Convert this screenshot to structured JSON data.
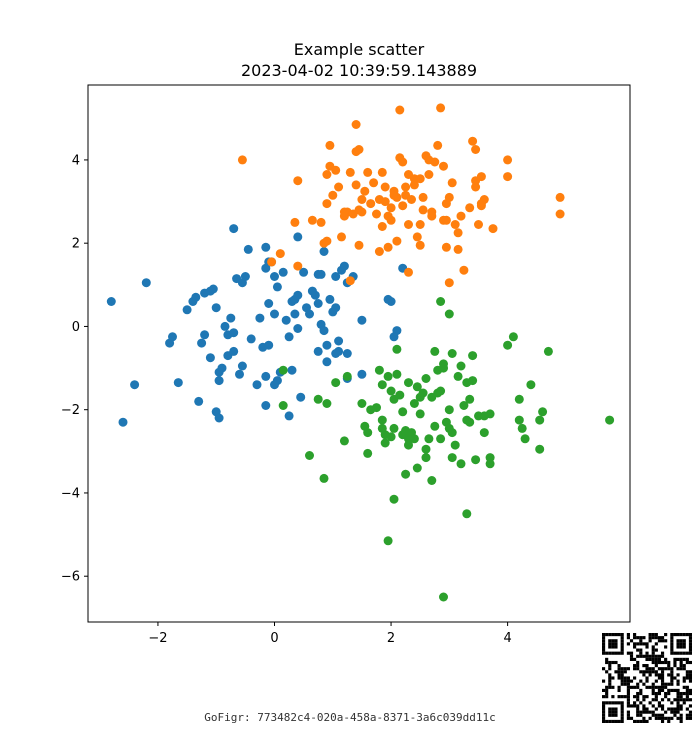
{
  "chart_data": {
    "type": "scatter",
    "title": "Example scatter",
    "subtitle": "2023-04-02 10:39:59.143889",
    "xlabel": "",
    "ylabel": "",
    "xlim": [
      -3.2,
      6.1
    ],
    "ylim": [
      -7.1,
      5.8
    ],
    "xticks": [
      -2,
      0,
      2,
      4
    ],
    "yticks": [
      -6,
      -4,
      -2,
      0,
      2,
      4
    ],
    "grid": false,
    "legend": "none",
    "series": [
      {
        "color": "#1f77b4",
        "points": [
          [
            -2.8,
            0.6
          ],
          [
            -2.2,
            1.05
          ],
          [
            -2.6,
            -2.3
          ],
          [
            -2.4,
            -1.4
          ],
          [
            -1.8,
            -0.4
          ],
          [
            -1.75,
            -0.25
          ],
          [
            -1.65,
            -1.35
          ],
          [
            -1.5,
            0.4
          ],
          [
            -1.4,
            0.6
          ],
          [
            -1.35,
            0.7
          ],
          [
            -1.3,
            -1.8
          ],
          [
            -1.2,
            -0.2
          ],
          [
            -1.25,
            -0.4
          ],
          [
            -1.2,
            0.8
          ],
          [
            -1.1,
            0.85
          ],
          [
            -1.05,
            0.9
          ],
          [
            -1.1,
            -0.75
          ],
          [
            -1.0,
            0.45
          ],
          [
            -0.95,
            -1.1
          ],
          [
            -0.95,
            -1.3
          ],
          [
            -0.9,
            -1.0
          ],
          [
            -0.85,
            0.0
          ],
          [
            -0.8,
            -0.2
          ],
          [
            -0.8,
            -0.7
          ],
          [
            -0.75,
            0.2
          ],
          [
            -0.7,
            -0.15
          ],
          [
            -0.7,
            -0.6
          ],
          [
            -0.65,
            1.15
          ],
          [
            -0.6,
            -1.15
          ],
          [
            -0.55,
            -0.95
          ],
          [
            -0.5,
            1.2
          ],
          [
            -0.55,
            1.05
          ],
          [
            -0.45,
            1.85
          ],
          [
            -0.7,
            2.35
          ],
          [
            -1.0,
            -2.05
          ],
          [
            -0.95,
            -2.2
          ],
          [
            -0.4,
            -0.3
          ],
          [
            -0.3,
            -1.4
          ],
          [
            -0.25,
            0.2
          ],
          [
            -0.2,
            -0.5
          ],
          [
            -0.15,
            1.9
          ],
          [
            -0.15,
            1.4
          ],
          [
            -0.1,
            0.55
          ],
          [
            -0.05,
            1.55
          ],
          [
            0.0,
            0.3
          ],
          [
            0.0,
            1.2
          ],
          [
            0.05,
            -1.3
          ],
          [
            0.0,
            -1.4
          ],
          [
            -0.1,
            -0.45
          ],
          [
            -0.15,
            -1.2
          ],
          [
            -0.1,
            1.55
          ],
          [
            0.05,
            0.95
          ],
          [
            0.1,
            -1.1
          ],
          [
            0.15,
            1.3
          ],
          [
            0.2,
            0.15
          ],
          [
            0.25,
            -0.25
          ],
          [
            0.3,
            -1.05
          ],
          [
            0.25,
            -2.15
          ],
          [
            -0.15,
            -1.9
          ],
          [
            0.3,
            0.6
          ],
          [
            0.35,
            0.3
          ],
          [
            0.35,
            0.65
          ],
          [
            0.4,
            0.75
          ],
          [
            0.4,
            -0.05
          ],
          [
            0.45,
            -1.7
          ],
          [
            0.4,
            2.15
          ],
          [
            0.5,
            1.3
          ],
          [
            0.55,
            0.45
          ],
          [
            0.6,
            0.3
          ],
          [
            0.65,
            0.85
          ],
          [
            0.7,
            0.75
          ],
          [
            0.75,
            1.25
          ],
          [
            0.75,
            0.55
          ],
          [
            0.8,
            1.25
          ],
          [
            0.75,
            -0.6
          ],
          [
            0.8,
            0.05
          ],
          [
            0.85,
            -0.1
          ],
          [
            0.9,
            -0.45
          ],
          [
            0.9,
            -0.85
          ],
          [
            0.95,
            0.65
          ],
          [
            1.0,
            0.35
          ],
          [
            1.05,
            0.45
          ],
          [
            1.05,
            1.2
          ],
          [
            1.1,
            -0.6
          ],
          [
            1.1,
            -0.35
          ],
          [
            1.15,
            1.35
          ],
          [
            1.2,
            1.45
          ],
          [
            1.25,
            -0.65
          ],
          [
            1.25,
            -1.25
          ],
          [
            1.25,
            1.05
          ],
          [
            1.35,
            1.2
          ],
          [
            1.5,
            0.15
          ],
          [
            0.85,
            1.8
          ],
          [
            1.5,
            -1.15
          ],
          [
            2.0,
            0.6
          ],
          [
            1.95,
            0.65
          ],
          [
            2.1,
            -0.1
          ],
          [
            2.05,
            -0.25
          ],
          [
            2.2,
            1.4
          ],
          [
            1.05,
            -0.65
          ]
        ]
      },
      {
        "color": "#ff7f0e",
        "points": [
          [
            -0.55,
            4.0
          ],
          [
            0.1,
            1.75
          ],
          [
            -0.05,
            1.55
          ],
          [
            0.35,
            2.5
          ],
          [
            0.4,
            3.5
          ],
          [
            0.4,
            1.45
          ],
          [
            0.65,
            2.55
          ],
          [
            0.8,
            2.5
          ],
          [
            0.85,
            2.0
          ],
          [
            0.9,
            2.95
          ],
          [
            0.9,
            3.65
          ],
          [
            0.95,
            4.35
          ],
          [
            0.95,
            3.85
          ],
          [
            1.0,
            3.15
          ],
          [
            1.05,
            3.75
          ],
          [
            1.1,
            3.35
          ],
          [
            1.15,
            2.15
          ],
          [
            1.2,
            2.65
          ],
          [
            1.25,
            2.75
          ],
          [
            1.3,
            1.1
          ],
          [
            1.35,
            2.7
          ],
          [
            1.4,
            3.4
          ],
          [
            1.4,
            4.85
          ],
          [
            1.4,
            4.2
          ],
          [
            1.45,
            4.25
          ],
          [
            1.45,
            2.8
          ],
          [
            1.45,
            1.95
          ],
          [
            1.5,
            2.75
          ],
          [
            1.5,
            3.05
          ],
          [
            1.55,
            3.25
          ],
          [
            1.6,
            3.7
          ],
          [
            1.65,
            2.95
          ],
          [
            1.7,
            3.45
          ],
          [
            1.75,
            2.7
          ],
          [
            1.8,
            3.05
          ],
          [
            1.8,
            1.8
          ],
          [
            1.85,
            3.7
          ],
          [
            1.85,
            2.4
          ],
          [
            1.9,
            3.0
          ],
          [
            1.9,
            3.35
          ],
          [
            1.95,
            1.9
          ],
          [
            1.95,
            2.65
          ],
          [
            2.0,
            2.55
          ],
          [
            2.0,
            2.85
          ],
          [
            2.05,
            3.25
          ],
          [
            2.05,
            3.15
          ],
          [
            2.1,
            2.05
          ],
          [
            2.1,
            3.1
          ],
          [
            2.15,
            5.2
          ],
          [
            2.15,
            4.05
          ],
          [
            2.2,
            3.95
          ],
          [
            2.2,
            2.9
          ],
          [
            2.25,
            3.35
          ],
          [
            2.25,
            3.15
          ],
          [
            2.3,
            2.45
          ],
          [
            2.3,
            3.65
          ],
          [
            2.35,
            3.05
          ],
          [
            2.4,
            3.4
          ],
          [
            2.4,
            3.55
          ],
          [
            2.45,
            2.15
          ],
          [
            2.5,
            1.95
          ],
          [
            2.5,
            3.55
          ],
          [
            2.5,
            2.45
          ],
          [
            2.55,
            3.1
          ],
          [
            2.55,
            2.8
          ],
          [
            2.6,
            4.1
          ],
          [
            2.65,
            3.65
          ],
          [
            2.65,
            4.0
          ],
          [
            2.7,
            2.75
          ],
          [
            2.7,
            2.65
          ],
          [
            2.75,
            3.95
          ],
          [
            2.8,
            4.35
          ],
          [
            2.85,
            5.25
          ],
          [
            2.9,
            3.85
          ],
          [
            2.9,
            2.55
          ],
          [
            2.95,
            2.55
          ],
          [
            2.95,
            1.9
          ],
          [
            2.95,
            2.95
          ],
          [
            3.0,
            3.1
          ],
          [
            3.0,
            1.05
          ],
          [
            3.05,
            3.45
          ],
          [
            3.1,
            2.45
          ],
          [
            3.15,
            2.25
          ],
          [
            3.15,
            1.85
          ],
          [
            3.2,
            2.65
          ],
          [
            3.25,
            1.35
          ],
          [
            3.35,
            2.85
          ],
          [
            3.4,
            4.45
          ],
          [
            3.45,
            3.35
          ],
          [
            3.45,
            3.5
          ],
          [
            3.45,
            4.25
          ],
          [
            3.5,
            2.45
          ],
          [
            3.55,
            3.6
          ],
          [
            3.55,
            2.9
          ],
          [
            3.6,
            3.05
          ],
          [
            3.75,
            2.35
          ],
          [
            4.0,
            4.0
          ],
          [
            4.0,
            3.6
          ],
          [
            4.9,
            3.1
          ],
          [
            4.9,
            2.7
          ],
          [
            3.55,
            2.95
          ],
          [
            1.2,
            2.75
          ],
          [
            0.9,
            2.05
          ],
          [
            2.3,
            1.3
          ],
          [
            1.3,
            3.7
          ]
        ]
      },
      {
        "color": "#2ca02c",
        "points": [
          [
            0.15,
            -1.05
          ],
          [
            0.15,
            -1.9
          ],
          [
            0.6,
            -3.1
          ],
          [
            0.75,
            -1.75
          ],
          [
            0.85,
            -3.65
          ],
          [
            0.9,
            -1.85
          ],
          [
            1.05,
            -1.35
          ],
          [
            1.2,
            -2.75
          ],
          [
            1.25,
            -1.2
          ],
          [
            1.5,
            -1.85
          ],
          [
            1.55,
            -2.4
          ],
          [
            1.6,
            -2.55
          ],
          [
            1.6,
            -3.05
          ],
          [
            1.65,
            -2.0
          ],
          [
            1.75,
            -1.95
          ],
          [
            1.8,
            -1.05
          ],
          [
            1.85,
            -2.25
          ],
          [
            1.85,
            -1.4
          ],
          [
            1.9,
            -2.8
          ],
          [
            1.9,
            -2.6
          ],
          [
            1.95,
            -5.15
          ],
          [
            1.95,
            -1.2
          ],
          [
            2.0,
            -2.65
          ],
          [
            2.0,
            -1.55
          ],
          [
            2.05,
            -2.45
          ],
          [
            2.05,
            -1.75
          ],
          [
            2.05,
            -4.15
          ],
          [
            2.1,
            -0.55
          ],
          [
            2.1,
            -1.15
          ],
          [
            2.15,
            -1.65
          ],
          [
            2.2,
            -2.05
          ],
          [
            2.2,
            -2.6
          ],
          [
            2.25,
            -3.55
          ],
          [
            2.25,
            -2.5
          ],
          [
            2.3,
            -2.85
          ],
          [
            2.3,
            -1.35
          ],
          [
            2.35,
            -2.55
          ],
          [
            2.4,
            -1.85
          ],
          [
            2.4,
            -2.7
          ],
          [
            2.45,
            -1.45
          ],
          [
            2.45,
            -3.4
          ],
          [
            2.5,
            -1.7
          ],
          [
            2.5,
            -2.1
          ],
          [
            2.55,
            -1.6
          ],
          [
            2.6,
            -3.15
          ],
          [
            2.6,
            -1.25
          ],
          [
            2.65,
            -2.7
          ],
          [
            2.7,
            -1.7
          ],
          [
            2.7,
            -3.7
          ],
          [
            2.75,
            -0.6
          ],
          [
            2.75,
            -2.4
          ],
          [
            2.8,
            -1.05
          ],
          [
            2.8,
            -1.6
          ],
          [
            2.85,
            -1.55
          ],
          [
            2.85,
            -2.7
          ],
          [
            2.9,
            -1.0
          ],
          [
            2.9,
            -0.9
          ],
          [
            2.9,
            -6.5
          ],
          [
            2.95,
            -2.3
          ],
          [
            3.0,
            -2.0
          ],
          [
            3.0,
            0.3
          ],
          [
            3.05,
            -0.65
          ],
          [
            3.05,
            -3.15
          ],
          [
            3.1,
            -2.85
          ],
          [
            3.15,
            -1.2
          ],
          [
            3.2,
            -0.95
          ],
          [
            3.2,
            -3.3
          ],
          [
            3.25,
            -1.9
          ],
          [
            3.3,
            -4.5
          ],
          [
            3.3,
            -1.35
          ],
          [
            3.35,
            -1.75
          ],
          [
            3.35,
            -2.3
          ],
          [
            3.4,
            -1.3
          ],
          [
            3.4,
            -0.7
          ],
          [
            3.45,
            -3.2
          ],
          [
            3.5,
            -2.15
          ],
          [
            3.6,
            -2.55
          ],
          [
            3.6,
            -2.15
          ],
          [
            3.7,
            -3.15
          ],
          [
            3.7,
            -3.3
          ],
          [
            3.7,
            -2.1
          ],
          [
            4.0,
            -0.45
          ],
          [
            4.1,
            -0.25
          ],
          [
            4.2,
            -1.75
          ],
          [
            4.2,
            -2.25
          ],
          [
            4.25,
            -2.45
          ],
          [
            4.3,
            -2.7
          ],
          [
            4.4,
            -1.4
          ],
          [
            4.55,
            -2.95
          ],
          [
            4.55,
            -2.25
          ],
          [
            4.6,
            -2.05
          ],
          [
            4.7,
            -0.6
          ],
          [
            5.75,
            -2.25
          ],
          [
            2.85,
            0.6
          ],
          [
            2.6,
            -2.95
          ],
          [
            3.0,
            -2.45
          ],
          [
            1.85,
            -2.45
          ],
          [
            2.3,
            -2.7
          ],
          [
            3.05,
            -2.55
          ],
          [
            3.3,
            -2.25
          ]
        ]
      }
    ]
  },
  "footer": {
    "text": "GoFigr: 773482c4-020a-458a-8371-3a6c039dd11c"
  }
}
